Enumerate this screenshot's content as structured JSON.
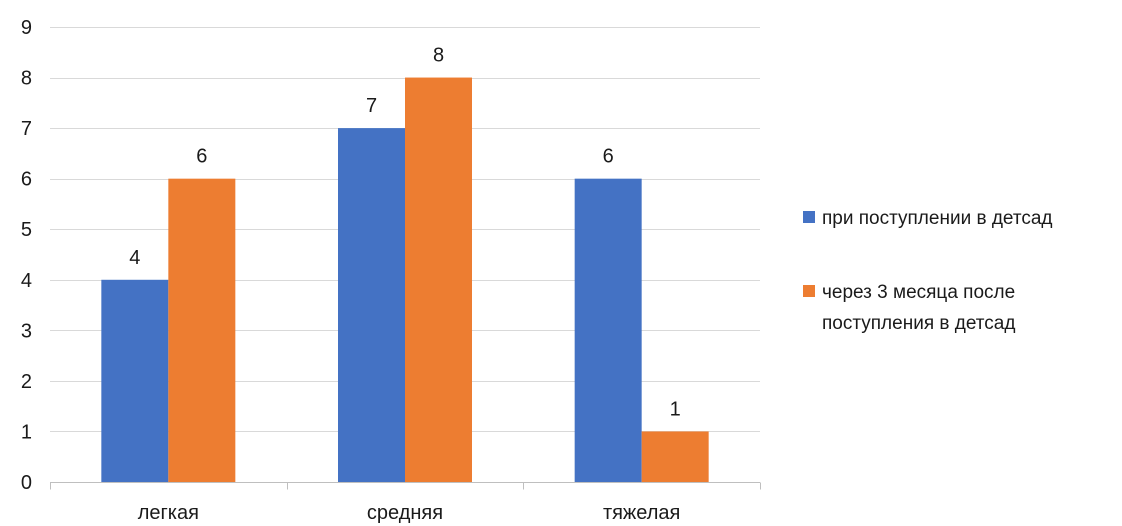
{
  "chart_data": {
    "type": "bar",
    "title": "",
    "xlabel": "",
    "ylabel": "",
    "categories": [
      "легкая",
      "средняя",
      "тяжелая"
    ],
    "series": [
      {
        "name": "при поступлении в детсад",
        "legend_lines": [
          "при поступлении в детсад"
        ],
        "color": "#4472C4",
        "values": [
          4,
          7,
          6
        ]
      },
      {
        "name": "через 3 месяца после поступления в детсад",
        "legend_lines": [
          "через 3 месяца после",
          "поступления в детсад"
        ],
        "color": "#ED7D31",
        "values": [
          6,
          8,
          1
        ]
      }
    ],
    "ylim": [
      0,
      9
    ],
    "yticks": [
      "0",
      "1",
      "2",
      "3",
      "4",
      "5",
      "6",
      "7",
      "8",
      "9"
    ],
    "grid": true,
    "data_labels": true,
    "legend_position": "right"
  }
}
